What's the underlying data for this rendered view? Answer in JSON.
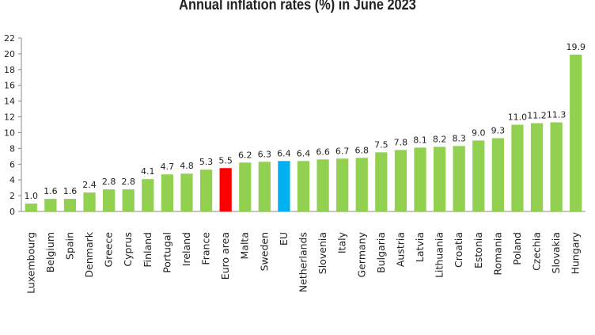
{
  "chart_data": {
    "type": "bar",
    "title": "Annual inflation rates (%) in June 2023",
    "xlabel": "",
    "ylabel": "",
    "ylim": [
      0,
      22
    ],
    "yticks": [
      0,
      2,
      4,
      6,
      8,
      10,
      12,
      14,
      16,
      18,
      20,
      22
    ],
    "categories": [
      "Luxembourg",
      "Belgium",
      "Spain",
      "Denmark",
      "Greece",
      "Cyprus",
      "Finland",
      "Portugal",
      "Ireland",
      "France",
      "Euro area",
      "Malta",
      "Sweden",
      "EU",
      "Netherlands",
      "Slovenia",
      "Italy",
      "Germany",
      "Bulgaria",
      "Austria",
      "Latvia",
      "Lithuania",
      "Croatia",
      "Estonia",
      "Romania",
      "Poland",
      "Czechia",
      "Slovakia",
      "Hungary"
    ],
    "values": [
      1.0,
      1.6,
      1.6,
      2.4,
      2.8,
      2.8,
      4.1,
      4.7,
      4.8,
      5.3,
      5.5,
      6.2,
      6.3,
      6.4,
      6.4,
      6.6,
      6.7,
      6.8,
      7.5,
      7.8,
      8.1,
      8.2,
      8.3,
      9.0,
      9.3,
      11.0,
      11.2,
      11.3,
      19.9
    ],
    "value_labels": [
      "1.0",
      "1.6",
      "1.6",
      "2.4",
      "2.8",
      "2.8",
      "4.1",
      "4.7",
      "4.8",
      "5.3",
      "5.5",
      "6.2",
      "6.3",
      "6.4",
      "6.4",
      "6.6",
      "6.7",
      "6.8",
      "7.5",
      "7.8",
      "8.1",
      "8.2",
      "8.3",
      "9.0",
      "9.3",
      "11.0",
      "11.2",
      "11.3",
      "19.9"
    ],
    "colors": {
      "default": "#92d050",
      "highlights": {
        "Euro area": "#ff0000",
        "EU": "#00b0f0"
      }
    },
    "grid": false,
    "legend": "none"
  }
}
